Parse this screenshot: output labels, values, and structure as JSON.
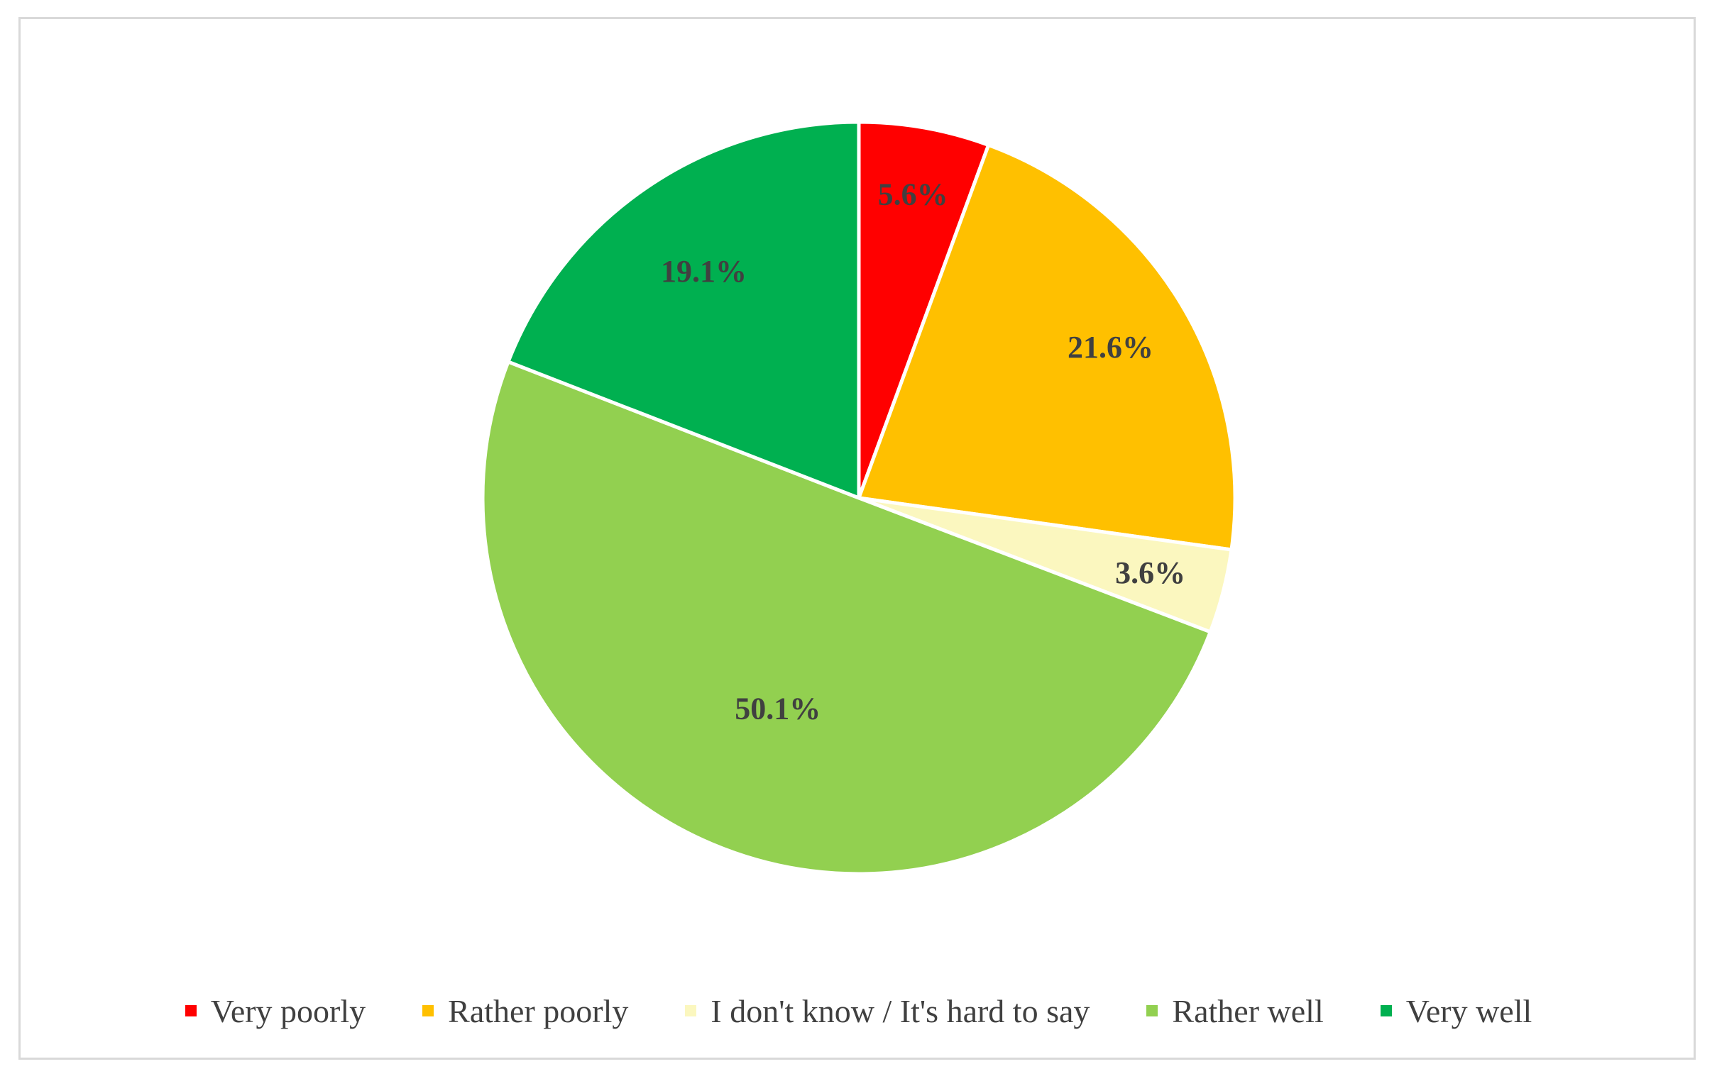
{
  "chart_data": {
    "type": "pie",
    "title": "",
    "start_angle_deg": 0,
    "direction": "clockwise",
    "legend_position": "bottom",
    "slices": [
      {
        "label": "Very poorly",
        "value": 5.6,
        "display": "5.6%",
        "color": "#ff0000"
      },
      {
        "label": "Rather poorly",
        "value": 21.6,
        "display": "21.6%",
        "color": "#ffc000"
      },
      {
        "label": "I don't know / It's hard to say",
        "value": 3.6,
        "display": "3.6%",
        "color": "#fbf7bf"
      },
      {
        "label": "Rather well",
        "value": 50.1,
        "display": "50.1%",
        "color": "#92d050"
      },
      {
        "label": "Very well",
        "value": 19.1,
        "display": "19.1%",
        "color": "#00b050"
      }
    ]
  }
}
